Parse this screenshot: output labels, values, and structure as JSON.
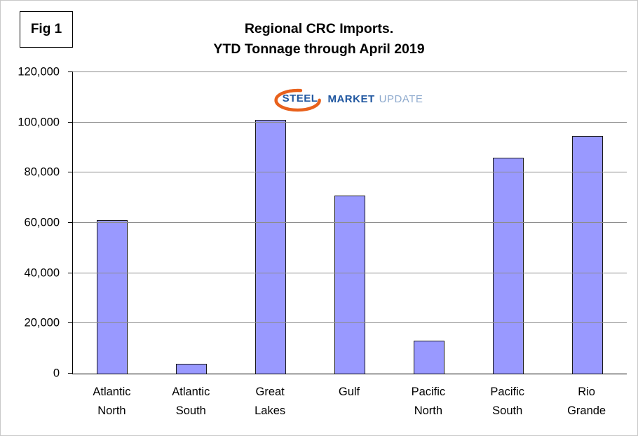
{
  "fig_label": "Fig 1",
  "title": {
    "line1": "Regional CRC Imports.",
    "line2": "YTD Tonnage through April 2019"
  },
  "logo": {
    "word1": "STEEL",
    "word2": "MARKET",
    "word3": "UPDATE",
    "blue": "#2057a0",
    "light_blue": "#8da9cd",
    "arc_color": "#e8611c"
  },
  "chart_data": {
    "type": "bar",
    "title": "Regional CRC Imports. YTD Tonnage through April 2019",
    "categories": [
      "Atlantic North",
      "Atlantic South",
      "Great Lakes",
      "Gulf",
      "Pacific North",
      "Pacific South",
      "Rio Grande"
    ],
    "values": [
      61000,
      4000,
      101000,
      71000,
      13000,
      86000,
      94500
    ],
    "xlabel": "",
    "ylabel": "",
    "ylim": [
      0,
      120000
    ],
    "ytick_interval": 20000,
    "ytick_labels": [
      "0",
      "20,000",
      "40,000",
      "60,000",
      "80,000",
      "100,000",
      "120,000"
    ],
    "grid": true,
    "legend": "none",
    "bar_color": "#9999ff",
    "bar_border": "#1a1a1a",
    "gridline_color": "#8c8c8c"
  }
}
